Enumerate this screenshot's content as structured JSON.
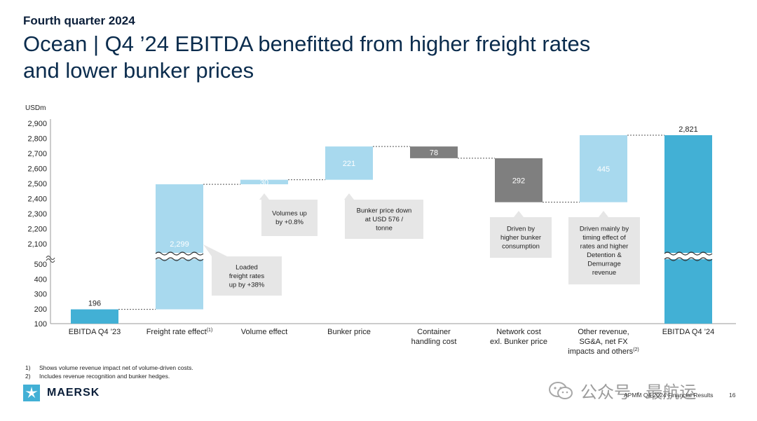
{
  "header": {
    "kicker": "Fourth quarter 2024",
    "title_line1": "Ocean | Q4 ’24 EBITDA benefitted from higher freight rates",
    "title_line2": "and lower bunker prices"
  },
  "colors": {
    "total_bar": "#42b0d5",
    "positive_bar": "#a8d9ee",
    "negative_bar": "#7f7f7f",
    "callout_bg": "#e6e6e6",
    "axis_text": "#222222"
  },
  "chart_data": {
    "type": "bar",
    "subtype": "waterfall with broken y-axis",
    "y_unit_label": "USDm",
    "axis_break": {
      "lower_range": [
        100,
        500
      ],
      "upper_range": [
        2100,
        2900
      ]
    },
    "lower_ticks": [
      "100",
      "200",
      "300",
      "400",
      "500"
    ],
    "upper_ticks": [
      "2,100",
      "2,200",
      "2,300",
      "2,400",
      "2,500",
      "2,600",
      "2,700",
      "2,800",
      "2,900"
    ],
    "categories": [
      "EBITDA Q4 ’23",
      "Freight rate effect",
      "Volume effect",
      "Bunker price",
      "Container handling cost",
      "Network cost exl. Bunker price",
      "Other revenue, SG&A, net FX impacts and others",
      "EBITDA Q4 ’24"
    ],
    "category_labels": [
      {
        "lines": [
          "EBITDA Q4 ’23"
        ],
        "sup": ""
      },
      {
        "lines": [
          "Freight rate effect"
        ],
        "sup": "(1)"
      },
      {
        "lines": [
          "Volume effect"
        ],
        "sup": ""
      },
      {
        "lines": [
          "Bunker price"
        ],
        "sup": ""
      },
      {
        "lines": [
          "Container",
          "handling cost"
        ],
        "sup": ""
      },
      {
        "lines": [
          "Network cost",
          "exl. Bunker price"
        ],
        "sup": ""
      },
      {
        "lines": [
          "Other revenue,",
          "SG&A, net FX",
          "impacts and others"
        ],
        "sup": "(2)"
      },
      {
        "lines": [
          "EBITDA Q4 ’24"
        ],
        "sup": ""
      }
    ],
    "bars": [
      {
        "kind": "total",
        "start": 100,
        "end": 196,
        "label": "196"
      },
      {
        "kind": "increase",
        "start": 196,
        "end": 2495,
        "label": "2,299"
      },
      {
        "kind": "increase",
        "start": 2495,
        "end": 2525,
        "label": "30"
      },
      {
        "kind": "increase",
        "start": 2525,
        "end": 2746,
        "label": "221"
      },
      {
        "kind": "decrease",
        "start": 2746,
        "end": 2668,
        "label": "78"
      },
      {
        "kind": "decrease",
        "start": 2668,
        "end": 2376,
        "label": "292"
      },
      {
        "kind": "increase",
        "start": 2376,
        "end": 2821,
        "label": "445"
      },
      {
        "kind": "total",
        "start": 100,
        "end": 2821,
        "label": "2,821"
      }
    ],
    "callouts": [
      {
        "bar": 1,
        "lines": [
          "Loaded",
          "freight rates",
          "up by +38%"
        ]
      },
      {
        "bar": 2,
        "lines": [
          "Volumes up",
          "by +0.8%"
        ]
      },
      {
        "bar": 3,
        "lines": [
          "Bunker price down",
          "at USD  576 /",
          "tonne"
        ]
      },
      {
        "bar": 5,
        "lines": [
          "Driven by",
          "higher bunker",
          "consumption"
        ]
      },
      {
        "bar": 6,
        "lines": [
          "Driven mainly by",
          "timing effect of",
          "rates and higher",
          "Detention &",
          "Demurrage",
          "revenue"
        ]
      }
    ]
  },
  "footnotes": [
    {
      "num": "1)",
      "text": "Shows volume revenue impact net of volume-driven costs."
    },
    {
      "num": "2)",
      "text": "Includes revenue recognition and bunker hedges."
    }
  ],
  "footer": {
    "brand": "MAERSK",
    "reference": "APMM Q4 2024 Financial Results",
    "page": "16",
    "watermark": "公众号 · 最航运"
  }
}
